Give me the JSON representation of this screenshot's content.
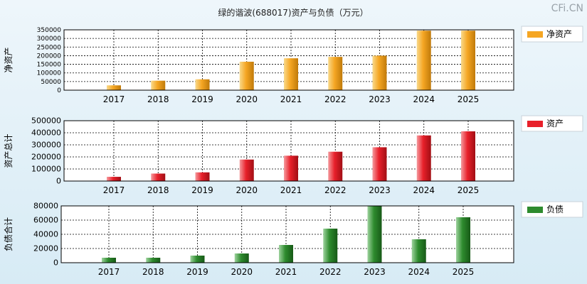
{
  "title": "绿的谐波(688017)资产与负债（万元）",
  "watermark": "CFi.CN",
  "colors": {
    "net_assets": "#f5a623",
    "total_assets": "#e8202a",
    "liabilities": "#2e8b2e"
  },
  "chart_data": [
    {
      "type": "bar",
      "ylabel": "净资产",
      "legend": "净资产",
      "legend_position": "right",
      "grid": true,
      "categories": [
        "2017",
        "2018",
        "2019",
        "2020",
        "2021",
        "2022",
        "2023",
        "2024",
        "2025"
      ],
      "values": [
        28000,
        55000,
        63000,
        165000,
        185000,
        193000,
        200000,
        345000,
        345000
      ],
      "ylim": [
        0,
        350000
      ],
      "yticks": [
        "0",
        "50000",
        "100000",
        "150000",
        "200000",
        "250000",
        "300000",
        "350000"
      ]
    },
    {
      "type": "bar",
      "ylabel": "资产总计",
      "legend": "资产",
      "legend_position": "right",
      "grid": true,
      "categories": [
        "2017",
        "2018",
        "2019",
        "2020",
        "2021",
        "2022",
        "2023",
        "2024",
        "2025"
      ],
      "values": [
        35000,
        62000,
        72000,
        178000,
        210000,
        243000,
        280000,
        378000,
        412000
      ],
      "ylim": [
        0,
        500000
      ],
      "yticks": [
        "0",
        "100000",
        "200000",
        "300000",
        "400000",
        "500000"
      ]
    },
    {
      "type": "bar",
      "ylabel": "负债合计",
      "legend": "负债",
      "legend_position": "right",
      "grid": true,
      "categories": [
        "2017",
        "2018",
        "2019",
        "2020",
        "2021",
        "2022",
        "2023",
        "2024",
        "2025"
      ],
      "values": [
        7000,
        7000,
        10000,
        13000,
        25000,
        48000,
        80000,
        33000,
        64000
      ],
      "ylim": [
        0,
        80000
      ],
      "yticks": [
        "0",
        "20000",
        "40000",
        "60000",
        "80000"
      ]
    }
  ]
}
